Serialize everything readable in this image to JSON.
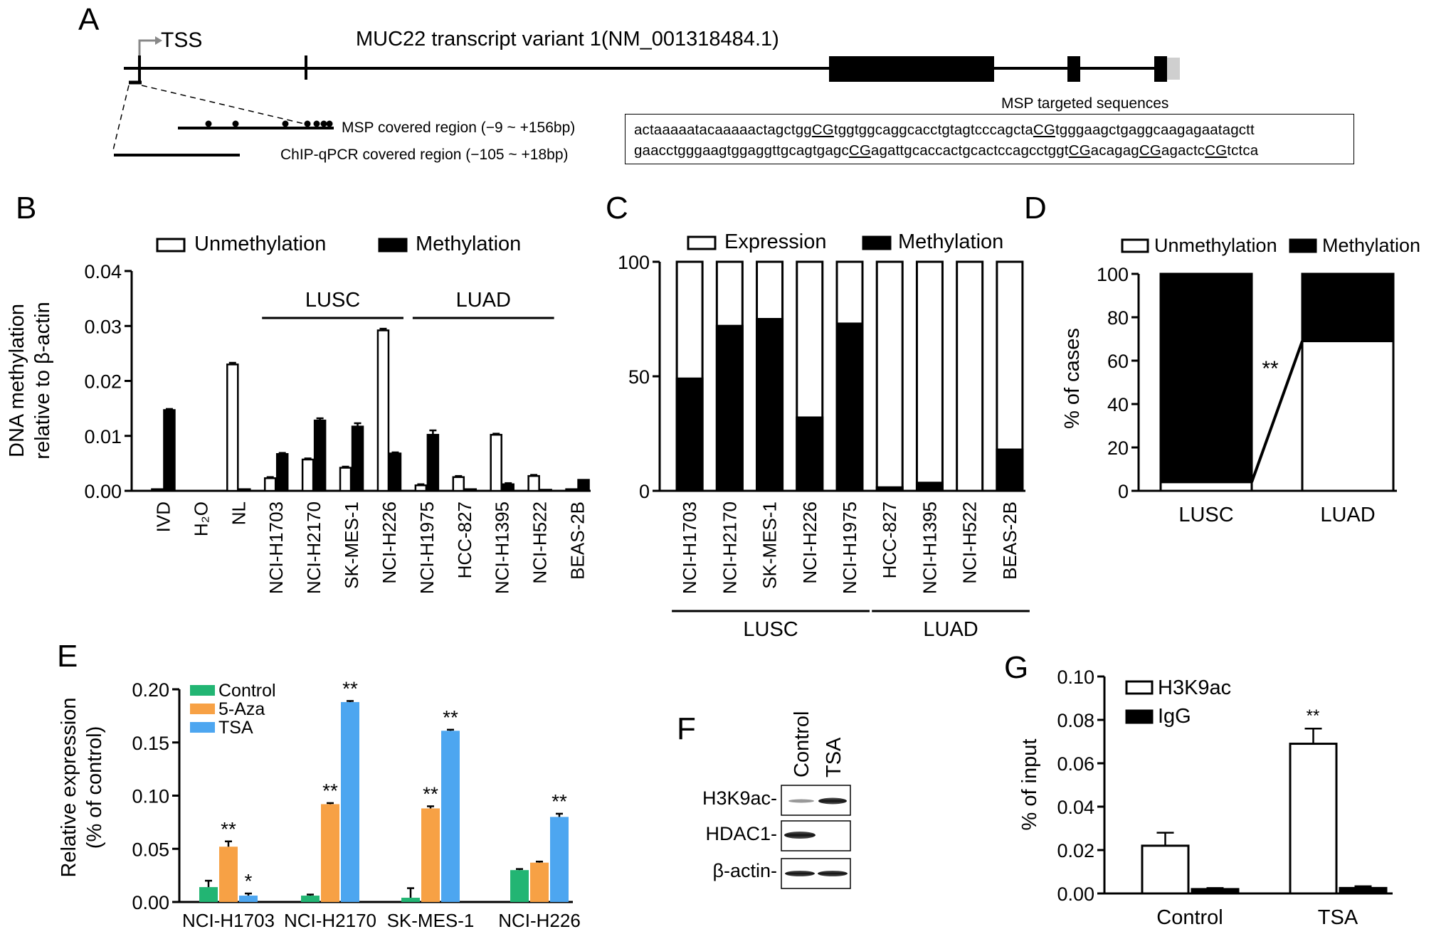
{
  "panelA": {
    "letter": "A",
    "tss": "TSS",
    "title": "MUC22 transcript variant 1(NM_001318484.1)",
    "msp_targeted": "MSP targeted sequences",
    "msp_region": "MSP covered region (−9 ~ +156bp)",
    "chip_region": "ChIP-qPCR covered region (−105 ~ +18bp)",
    "seq_line1": [
      {
        "t": "actaaaaatacaaaaactagctgg"
      },
      {
        "t": "CG",
        "u": true
      },
      {
        "t": "tggtggcaggcacctgtagtcccagcta"
      },
      {
        "t": "CG",
        "u": true
      },
      {
        "t": "tgggaagctgaggcaagagaatagctt"
      }
    ],
    "seq_line2": [
      {
        "t": "gaacctgggaagtggaggttgcagtgagc"
      },
      {
        "t": "CG",
        "u": true
      },
      {
        "t": "agattgcaccactgcactccagcctggt"
      },
      {
        "t": "CG",
        "u": true
      },
      {
        "t": "acagag"
      },
      {
        "t": "CG",
        "u": true
      },
      {
        "t": "agactc"
      },
      {
        "t": "CG",
        "u": true
      },
      {
        "t": "tctca"
      }
    ]
  },
  "chart_data": [
    {
      "panel": "B",
      "type": "bar",
      "ylabel": "DNA methylation",
      "ylabel2": "relative to β-actin",
      "ylim": [
        0,
        0.04
      ],
      "yticks": [
        "0.00",
        "0.01",
        "0.02",
        "0.03",
        "0.04"
      ],
      "legend": [
        "Unmethylation",
        "Methylation"
      ],
      "categories": [
        "IVD",
        "H₂O",
        "NL",
        "NCI-H1703",
        "NCI-H2170",
        "SK-MES-1",
        "NCI-H226",
        "NCI-H1975",
        "HCC-827",
        "NCI-H1395",
        "NCI-H522",
        "BEAS-2B"
      ],
      "series": [
        {
          "name": "Unmethylation",
          "values": [
            0.0003,
            0,
            0.023,
            0.0023,
            0.0057,
            0.0042,
            0.0292,
            0.001,
            0.0025,
            0.0102,
            0.0027,
            0.0003
          ],
          "errors": [
            0,
            0,
            0.0003,
            0.0002,
            0.0002,
            0.0002,
            0.0003,
            0.0002,
            0.0002,
            0.0002,
            0.0002,
            0
          ]
        },
        {
          "name": "Methylation",
          "values": [
            0.0147,
            0,
            0.0003,
            0.0067,
            0.0128,
            0.0117,
            0.0068,
            0.0102,
            0.0003,
            0.0012,
            0.0002,
            0.002
          ],
          "errors": [
            0.0002,
            0,
            0,
            0.0002,
            0.0004,
            0.0006,
            0.0002,
            0.0008,
            0,
            0.0002,
            0,
            0
          ]
        }
      ],
      "groups": [
        {
          "label": "LUSC",
          "from": 3,
          "to": 6
        },
        {
          "label": "LUAD",
          "from": 7,
          "to": 10
        }
      ]
    },
    {
      "panel": "C",
      "type": "bar",
      "ylim": [
        0,
        100
      ],
      "yticks": [
        "0",
        "50",
        "100"
      ],
      "legend": [
        "Expression",
        "Methylation"
      ],
      "categories": [
        "NCI-H1703",
        "NCI-H2170",
        "SK-MES-1",
        "NCI-H226",
        "NCI-H1975",
        "HCC-827",
        "NCI-H1395",
        "NCI-H522",
        "BEAS-2B"
      ],
      "series": [
        {
          "name": "Methylation",
          "values": [
            49,
            72,
            75,
            32,
            73,
            1.5,
            3.5,
            0,
            18
          ]
        }
      ],
      "groups": [
        {
          "label": "LUSC",
          "from": 0,
          "to": 4
        },
        {
          "label": "LUAD",
          "from": 5,
          "to": 8
        }
      ]
    },
    {
      "panel": "D",
      "type": "bar",
      "ylabel": "% of cases",
      "ylim": [
        0,
        100
      ],
      "yticks": [
        "0",
        "20",
        "40",
        "60",
        "80",
        "100"
      ],
      "legend": [
        "Unmethylation",
        "Methylation"
      ],
      "categories": [
        "LUSC",
        "LUAD"
      ],
      "series": [
        {
          "name": "Unmethylation",
          "values": [
            4,
            69
          ]
        },
        {
          "name": "Methylation",
          "values": [
            96,
            31
          ]
        }
      ],
      "annotation": "**"
    },
    {
      "panel": "E",
      "type": "bar",
      "ylabel": "Relative expression",
      "ylabel2": "(% of control)",
      "ylim": [
        0,
        0.2
      ],
      "yticks": [
        "0.00",
        "0.05",
        "0.10",
        "0.15",
        "0.20"
      ],
      "legend": [
        "Control",
        "5-Aza",
        "TSA"
      ],
      "colors": [
        "#22b573",
        "#f7a145",
        "#4da6f0"
      ],
      "categories": [
        "NCI-H1703",
        "NCI-H2170",
        "SK-MES-1",
        "NCI-H226"
      ],
      "series": [
        {
          "name": "Control",
          "values": [
            0.014,
            0.006,
            0.004,
            0.03
          ],
          "errors": [
            0.006,
            0.001,
            0.009,
            0.001
          ]
        },
        {
          "name": "5-Aza",
          "values": [
            0.052,
            0.092,
            0.088,
            0.037
          ],
          "errors": [
            0.005,
            0.001,
            0.002,
            0.001
          ]
        },
        {
          "name": "TSA",
          "values": [
            0.006,
            0.188,
            0.161,
            0.08
          ],
          "errors": [
            0.002,
            0.001,
            0.001,
            0.003
          ]
        }
      ],
      "significance": [
        [
          "",
          "**",
          "*"
        ],
        [
          "",
          "**",
          "**"
        ],
        [
          "",
          "**",
          "**"
        ],
        [
          "",
          "",
          "**"
        ]
      ]
    },
    {
      "panel": "G",
      "type": "bar",
      "ylabel": "% of input",
      "ylim": [
        0,
        0.1
      ],
      "yticks": [
        "0.00",
        "0.02",
        "0.04",
        "0.06",
        "0.08",
        "0.10"
      ],
      "legend": [
        "H3K9ac",
        "IgG"
      ],
      "categories": [
        "Control",
        "TSA"
      ],
      "series": [
        {
          "name": "H3K9ac",
          "values": [
            0.022,
            0.069
          ],
          "errors": [
            0.006,
            0.007
          ]
        },
        {
          "name": "IgG",
          "values": [
            0.002,
            0.0025
          ],
          "errors": [
            0.0005,
            0.0008
          ]
        }
      ],
      "significance": [
        "",
        "**"
      ]
    }
  ],
  "panelF": {
    "letter": "F",
    "lanes": [
      "Control",
      "TSA"
    ],
    "rows": [
      "H3K9ac-",
      "HDAC1-",
      "β-actin-"
    ]
  },
  "letters": {
    "B": "B",
    "C": "C",
    "D": "D",
    "E": "E",
    "G": "G"
  }
}
